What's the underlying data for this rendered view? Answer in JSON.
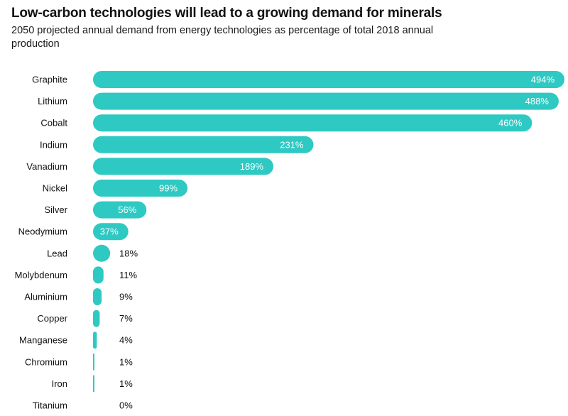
{
  "chart_data": {
    "type": "bar",
    "orientation": "horizontal",
    "title": "Low-carbon technologies will lead to a growing demand for minerals",
    "subtitle": "2050 projected annual demand from energy technologies as percentage of total 2018 annual production",
    "categories": [
      "Graphite",
      "Lithium",
      "Cobalt",
      "Indium",
      "Vanadium",
      "Nickel",
      "Silver",
      "Neodymium",
      "Lead",
      "Molybdenum",
      "Aluminium",
      "Copper",
      "Manganese",
      "Chromium",
      "Iron",
      "Titanium"
    ],
    "values": [
      494,
      488,
      460,
      231,
      189,
      99,
      56,
      37,
      18,
      11,
      9,
      7,
      4,
      1,
      1,
      0
    ],
    "value_labels": [
      "494%",
      "488%",
      "460%",
      "231%",
      "189%",
      "99%",
      "56%",
      "37%",
      "18%",
      "11%",
      "9%",
      "7%",
      "4%",
      "1%",
      "1%",
      "0%"
    ],
    "unit": "%",
    "xlim": [
      0,
      494
    ],
    "grid": false,
    "legend": "none",
    "bar_color": "#2ec9c2"
  }
}
